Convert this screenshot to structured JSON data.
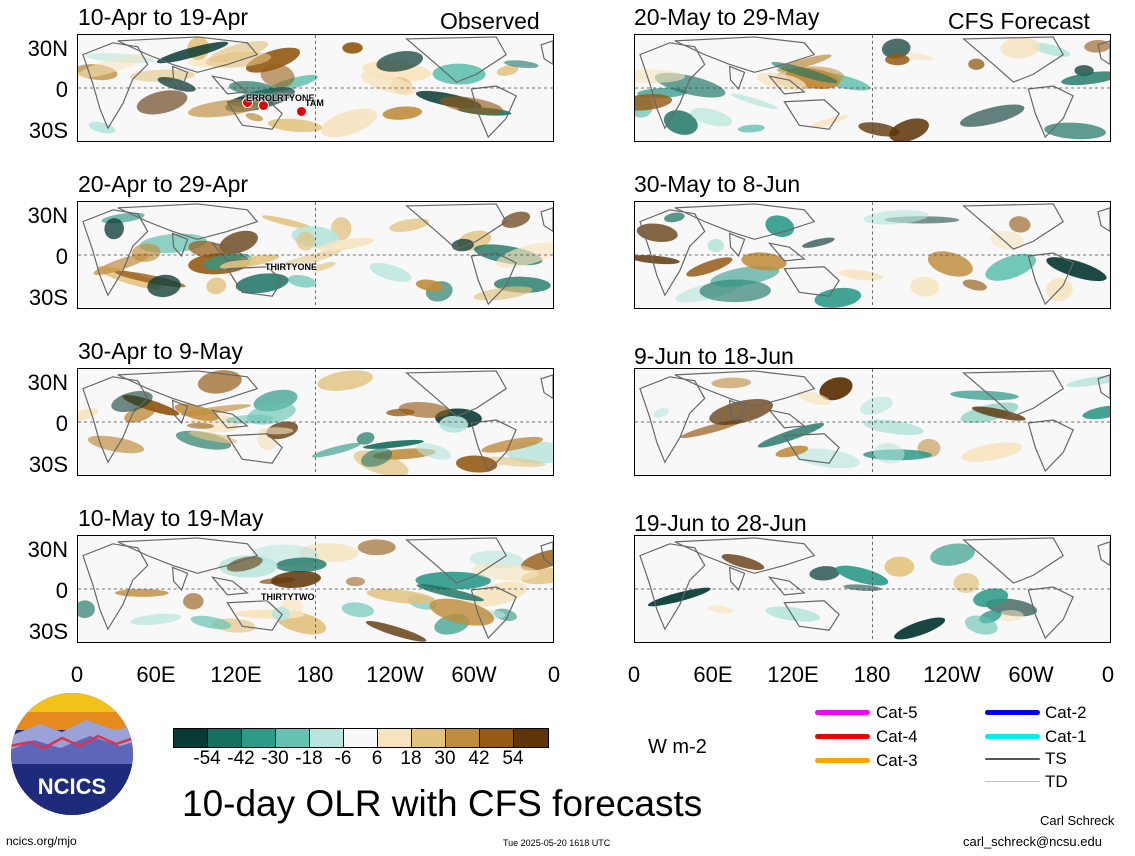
{
  "header": {
    "observed_label": "Observed",
    "forecast_label": "CFS Forecast"
  },
  "panels": {
    "observed": [
      {
        "title": "10-Apr to 19-Apr",
        "storms": [
          "ERROL",
          "RTYONE",
          "TAM"
        ]
      },
      {
        "title": "20-Apr to 29-Apr",
        "storms": [
          "THIRTYONE"
        ]
      },
      {
        "title": "30-Apr to 9-May",
        "storms": []
      },
      {
        "title": "10-May to 19-May",
        "storms": [
          "THIRTYTWO"
        ]
      }
    ],
    "forecast": [
      {
        "title": "20-May to 29-May"
      },
      {
        "title": "30-May to 8-Jun"
      },
      {
        "title": "9-Jun to 18-Jun"
      },
      {
        "title": "19-Jun to 28-Jun"
      }
    ]
  },
  "axes": {
    "lat_labels": [
      "30N",
      "0",
      "30S"
    ],
    "lon_labels": [
      "0",
      "60E",
      "120E",
      "180",
      "120W",
      "60W",
      "0"
    ]
  },
  "colorbar": {
    "colors": [
      "#0a3a35",
      "#16705f",
      "#2e9a88",
      "#66c3b2",
      "#b8e5dd",
      "#f8f8f8",
      "#f7e3bd",
      "#e2c27f",
      "#c08d3e",
      "#955b16",
      "#5e3408"
    ],
    "ticks": [
      "-54",
      "-42",
      "-30",
      "-18",
      "-6",
      "6",
      "18",
      "30",
      "42",
      "54"
    ],
    "unit": "W m-2"
  },
  "main_title": "10-day OLR with CFS forecasts",
  "legend": [
    {
      "label": "Cat-5",
      "color": "#ff00ff"
    },
    {
      "label": "Cat-4",
      "color": "#ee0000"
    },
    {
      "label": "Cat-3",
      "color": "#ffa500"
    },
    {
      "label": "Cat-2",
      "color": "#0000ee"
    },
    {
      "label": "Cat-1",
      "color": "#00eeee"
    },
    {
      "label": "TS",
      "color": "#555555"
    },
    {
      "label": "TD",
      "color": "#bbbbbb"
    }
  ],
  "logo": {
    "text": "NCICS",
    "icon": "ncics-logo-icon"
  },
  "footer": {
    "url": "ncics.org/mjo",
    "timestamp": "Tue 2025-05-20 1618 UTC",
    "author": "Carl Schreck",
    "email": "carl_schreck@ncsu.edu"
  }
}
